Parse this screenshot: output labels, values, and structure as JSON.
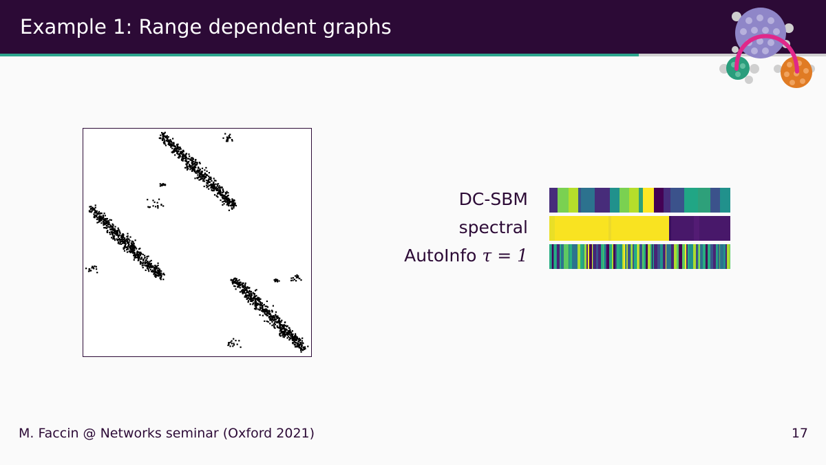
{
  "slide": {
    "title": "Example 1: Range dependent graphs",
    "footer": "M. Faccin @ Networks seminar (Oxford 2021)",
    "page_number": "17"
  },
  "colors": {
    "header_bg": "#2c0a36",
    "accent_teal": "#2ca58d",
    "logo_purple": "#8f86c8",
    "logo_teal": "#2a9d7c",
    "logo_orange": "#e07b24",
    "logo_pink": "#e0288a"
  },
  "rows": [
    {
      "label": "DC-SBM",
      "math": ""
    },
    {
      "label": "spectral",
      "math": ""
    },
    {
      "label": "AutoInfo ",
      "math": "τ = 1"
    }
  ],
  "icons": {
    "logo": "network-communities-logo",
    "matrix": "adjacency-matrix-image"
  }
}
